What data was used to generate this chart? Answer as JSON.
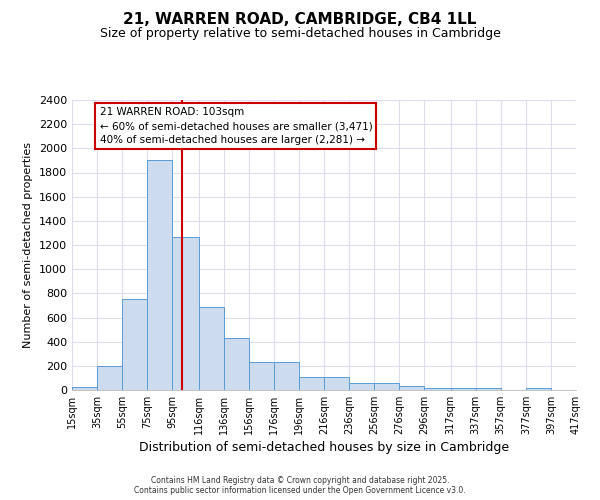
{
  "title": "21, WARREN ROAD, CAMBRIDGE, CB4 1LL",
  "subtitle": "Size of property relative to semi-detached houses in Cambridge",
  "xlabel": "Distribution of semi-detached houses by size in Cambridge",
  "ylabel": "Number of semi-detached properties",
  "annotation_title": "21 WARREN ROAD: 103sqm",
  "annotation_line1": "← 60% of semi-detached houses are smaller (3,471)",
  "annotation_line2": "40% of semi-detached houses are larger (2,281) →",
  "bin_edges": [
    15,
    35,
    55,
    75,
    95,
    116,
    136,
    156,
    176,
    196,
    216,
    236,
    256,
    276,
    296,
    317,
    337,
    357,
    377,
    397,
    417
  ],
  "bin_labels": [
    "15sqm",
    "35sqm",
    "55sqm",
    "75sqm",
    "95sqm",
    "116sqm",
    "136sqm",
    "156sqm",
    "176sqm",
    "196sqm",
    "216sqm",
    "236sqm",
    "256sqm",
    "276sqm",
    "296sqm",
    "317sqm",
    "337sqm",
    "357sqm",
    "377sqm",
    "397sqm",
    "417sqm"
  ],
  "bar_heights": [
    25,
    200,
    750,
    1900,
    1270,
    690,
    430,
    230,
    230,
    105,
    105,
    60,
    60,
    35,
    20,
    20,
    15,
    0,
    15,
    0
  ],
  "bar_color": "#ccdcee",
  "bar_edge_color": "#5b9bd5",
  "vline_color": "#cc0000",
  "vline_x": 103,
  "ylim": [
    0,
    2400
  ],
  "yticks": [
    0,
    200,
    400,
    600,
    800,
    1000,
    1200,
    1400,
    1600,
    1800,
    2000,
    2200,
    2400
  ],
  "bg_color": "#ffffff",
  "grid_color": "#ddddee",
  "title_fontsize": 11,
  "subtitle_fontsize": 9,
  "footer_line1": "Contains HM Land Registry data © Crown copyright and database right 2025.",
  "footer_line2": "Contains public sector information licensed under the Open Government Licence v3.0."
}
